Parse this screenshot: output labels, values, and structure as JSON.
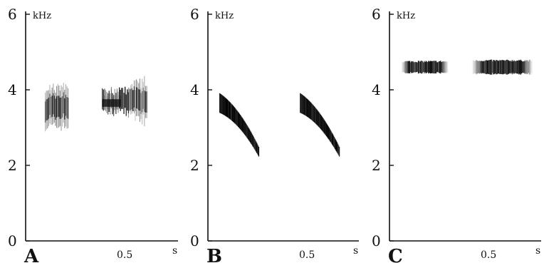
{
  "chart_data": [
    {
      "type": "spectrogram",
      "panel_label": "A",
      "ylabel": "kHz",
      "xlabel": "s",
      "ylim": [
        0,
        6
      ],
      "yticks": [
        "0",
        "2",
        "4",
        "6"
      ],
      "xticks": [
        {
          "value": 0.5,
          "label": "0.5"
        }
      ],
      "notes": [
        {
          "t_start": 0.1,
          "t_end": 0.22,
          "f_low": 2.9,
          "f_high": 4.2,
          "texture": "vertical-striations"
        },
        {
          "t_start": 0.39,
          "t_end": 0.62,
          "f_low": 3.0,
          "f_high": 4.4,
          "texture": "vertical-striations-rising"
        }
      ]
    },
    {
      "type": "spectrogram",
      "panel_label": "B",
      "ylabel": "kHz",
      "xlabel": "s",
      "ylim": [
        0,
        6
      ],
      "yticks": [
        "0",
        "2",
        "4",
        "6"
      ],
      "xticks": [
        {
          "value": 0.5,
          "label": "0.5"
        }
      ],
      "notes": [
        {
          "t_start": 0.06,
          "t_end": 0.26,
          "f_start": 3.65,
          "f_end": 2.35,
          "texture": "descending-sweep"
        },
        {
          "t_start": 0.47,
          "t_end": 0.67,
          "f_start": 3.65,
          "f_end": 2.35,
          "texture": "descending-sweep"
        }
      ]
    },
    {
      "type": "spectrogram",
      "panel_label": "C",
      "ylabel": "kHz",
      "xlabel": "s",
      "ylim": [
        0,
        6
      ],
      "yticks": [
        "0",
        "2",
        "4",
        "6"
      ],
      "xticks": [
        {
          "value": 0.5,
          "label": "0.5"
        }
      ],
      "notes": [
        {
          "t_start": 0.06,
          "t_end": 0.3,
          "f_center": 4.6,
          "f_width": 0.25,
          "texture": "flat-tone"
        },
        {
          "t_start": 0.42,
          "t_end": 0.73,
          "f_center": 4.6,
          "f_width": 0.3,
          "texture": "flat-tone"
        }
      ]
    }
  ]
}
